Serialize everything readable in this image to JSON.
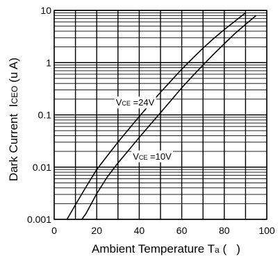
{
  "chart_data": {
    "type": "line",
    "title": "",
    "xlabel": "Ambient Temperature Ta (   )",
    "xlabel_parts": {
      "main": "Ambient Temperature T",
      "sub": "a",
      "tail": " (   )"
    },
    "ylabel": "Dark Current  ICEO (u A)",
    "ylabel_parts": {
      "main": "Dark Current  I",
      "sub": "CEO",
      "tail": " (u A)"
    },
    "xlim": [
      0,
      100
    ],
    "ylim": [
      0.001,
      10
    ],
    "yscale": "log",
    "grid": true,
    "x_ticks": [
      0,
      20,
      40,
      60,
      80,
      100
    ],
    "x_tick_labels": [
      "0",
      "20",
      "40",
      "60",
      "80",
      "100"
    ],
    "y_ticks": [
      0.001,
      0.01,
      0.1,
      1,
      10
    ],
    "y_tick_labels": [
      "0.001",
      "0.01",
      "0.1",
      "1",
      "10"
    ],
    "series": [
      {
        "label": "VCE =24V",
        "label_parts": {
          "v": "V",
          "sub": "CE",
          "rest": " =24V"
        },
        "label_at": [
          29,
          0.15
        ],
        "x": [
          6,
          10,
          15,
          20,
          25,
          30,
          35,
          40,
          45,
          50,
          55,
          60,
          65,
          70,
          75,
          80,
          85,
          90
        ],
        "y": [
          0.001,
          0.0019,
          0.0042,
          0.009,
          0.0165,
          0.03,
          0.053,
          0.093,
          0.16,
          0.27,
          0.45,
          0.75,
          1.2,
          1.9,
          2.9,
          4.3,
          6.2,
          9.0
        ]
      },
      {
        "label": "VCE =10V",
        "label_parts": {
          "v": "V",
          "sub": "CE",
          "rest": " =10V"
        },
        "label_at": [
          37,
          0.014
        ],
        "x": [
          13,
          15,
          20,
          25,
          30,
          35,
          40,
          45,
          50,
          55,
          60,
          65,
          70,
          75,
          80,
          85,
          90,
          95
        ],
        "y": [
          0.001,
          0.0013,
          0.0031,
          0.0065,
          0.012,
          0.021,
          0.037,
          0.064,
          0.11,
          0.19,
          0.33,
          0.55,
          0.9,
          1.45,
          2.3,
          3.6,
          5.4,
          8.0
        ]
      }
    ]
  }
}
